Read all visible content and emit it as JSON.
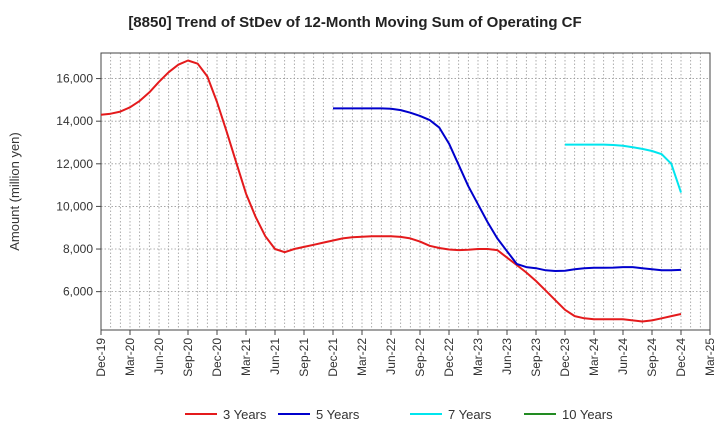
{
  "chart_data": {
    "type": "line",
    "title": "[8850]  Trend of StDev of 12-Month Moving Sum of Operating CF",
    "xlabel": "",
    "ylabel": "Amount (million yen)",
    "x_tick_labels": [
      "Dec-19",
      "Mar-20",
      "Jun-20",
      "Sep-20",
      "Dec-20",
      "Mar-21",
      "Jun-21",
      "Sep-21",
      "Dec-21",
      "Mar-22",
      "Jun-22",
      "Sep-22",
      "Dec-22",
      "Mar-23",
      "Jun-23",
      "Sep-23",
      "Dec-23",
      "Mar-24",
      "Jun-24",
      "Sep-24",
      "Dec-24",
      "Mar-25"
    ],
    "y_ticks": [
      6000,
      8000,
      10000,
      12000,
      14000,
      16000
    ],
    "y_tick_labels": [
      "6,000",
      "8,000",
      "10,000",
      "12,000",
      "14,000",
      "16,000"
    ],
    "ylim": [
      4200,
      17200
    ],
    "grid": true,
    "legend_position": "bottom",
    "series": [
      {
        "name": "3 Years",
        "color": "#e41a1c",
        "x": [
          "2019-12",
          "2020-01",
          "2020-02",
          "2020-03",
          "2020-04",
          "2020-05",
          "2020-06",
          "2020-07",
          "2020-08",
          "2020-09",
          "2020-10",
          "2020-11",
          "2020-12",
          "2021-01",
          "2021-02",
          "2021-03",
          "2021-04",
          "2021-05",
          "2021-06",
          "2021-07",
          "2021-08",
          "2021-09",
          "2021-10",
          "2021-11",
          "2021-12",
          "2022-01",
          "2022-02",
          "2022-03",
          "2022-04",
          "2022-05",
          "2022-06",
          "2022-07",
          "2022-08",
          "2022-09",
          "2022-10",
          "2022-11",
          "2022-12",
          "2023-01",
          "2023-02",
          "2023-03",
          "2023-04",
          "2023-05",
          "2023-06",
          "2023-07",
          "2023-08",
          "2023-09",
          "2023-10",
          "2023-11",
          "2023-12",
          "2024-01",
          "2024-02",
          "2024-03",
          "2024-04",
          "2024-05",
          "2024-06",
          "2024-07",
          "2024-08",
          "2024-09",
          "2024-10",
          "2024-11",
          "2024-12"
        ],
        "values": [
          14300,
          14350,
          14450,
          14650,
          14950,
          15350,
          15850,
          16300,
          16650,
          16850,
          16700,
          16100,
          14900,
          13500,
          12050,
          10600,
          9500,
          8600,
          8000,
          7850,
          8000,
          8100,
          8200,
          8300,
          8400,
          8500,
          8550,
          8580,
          8600,
          8600,
          8600,
          8570,
          8500,
          8350,
          8150,
          8050,
          7980,
          7950,
          7970,
          8000,
          8000,
          7950,
          7600,
          7250,
          6900,
          6500,
          6050,
          5600,
          5150,
          4850,
          4750,
          4700,
          4700,
          4700,
          4700,
          4650,
          4600,
          4650,
          4750,
          4850,
          4950
        ]
      },
      {
        "name": "5 Years",
        "color": "#0000cc",
        "x": [
          "2021-12",
          "2022-01",
          "2022-02",
          "2022-03",
          "2022-04",
          "2022-05",
          "2022-06",
          "2022-07",
          "2022-08",
          "2022-09",
          "2022-10",
          "2022-11",
          "2022-12",
          "2023-01",
          "2023-02",
          "2023-03",
          "2023-04",
          "2023-05",
          "2023-06",
          "2023-07",
          "2023-08",
          "2023-09",
          "2023-10",
          "2023-11",
          "2023-12",
          "2024-01",
          "2024-02",
          "2024-03",
          "2024-04",
          "2024-05",
          "2024-06",
          "2024-07",
          "2024-08",
          "2024-09",
          "2024-10",
          "2024-11",
          "2024-12"
        ],
        "values": [
          14600,
          14600,
          14600,
          14600,
          14600,
          14600,
          14580,
          14520,
          14400,
          14250,
          14050,
          13700,
          12950,
          11950,
          10950,
          10100,
          9250,
          8500,
          7900,
          7300,
          7150,
          7100,
          7000,
          6970,
          6980,
          7050,
          7100,
          7120,
          7120,
          7130,
          7150,
          7150,
          7100,
          7050,
          7000,
          7000,
          7020
        ]
      },
      {
        "name": "7 Years",
        "color": "#00e5ee",
        "x": [
          "2023-12",
          "2024-01",
          "2024-02",
          "2024-03",
          "2024-04",
          "2024-05",
          "2024-06",
          "2024-07",
          "2024-08",
          "2024-09",
          "2024-10",
          "2024-11",
          "2024-12"
        ],
        "values": [
          12900,
          12900,
          12900,
          12900,
          12900,
          12880,
          12850,
          12780,
          12700,
          12600,
          12450,
          12000,
          10650
        ]
      },
      {
        "name": "10 Years",
        "color": "#228b22",
        "x": [],
        "values": []
      }
    ]
  }
}
